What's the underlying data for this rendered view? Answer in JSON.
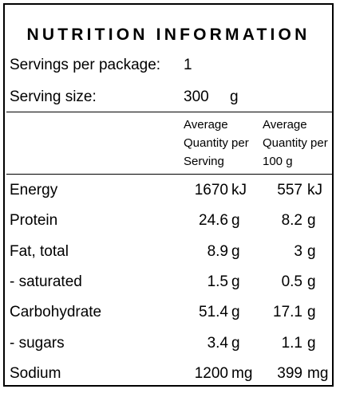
{
  "title": "NUTRITION INFORMATION",
  "servings_per_package": {
    "label": "Servings per package:",
    "value": "1"
  },
  "serving_size": {
    "label": "Serving size:",
    "value": "300",
    "unit": "g"
  },
  "column_headers": {
    "per_serving": [
      "Average",
      "Quantity per",
      "Serving"
    ],
    "per_100g": [
      "Average",
      "Quantity per",
      "100 g"
    ]
  },
  "rows": [
    {
      "name": "Energy",
      "serving_value": "1670",
      "serving_unit": "kJ",
      "per100_value": "557",
      "per100_unit": "kJ"
    },
    {
      "name": "Protein",
      "serving_value": "24.6",
      "serving_unit": "g",
      "per100_value": "8.2",
      "per100_unit": "g"
    },
    {
      "name": "Fat, total",
      "serving_value": "8.9",
      "serving_unit": "g",
      "per100_value": "3",
      "per100_unit": "g"
    },
    {
      "name": "- saturated",
      "serving_value": "1.5",
      "serving_unit": "g",
      "per100_value": "0.5",
      "per100_unit": "g"
    },
    {
      "name": "Carbohydrate",
      "serving_value": "51.4",
      "serving_unit": "g",
      "per100_value": "17.1",
      "per100_unit": "g"
    },
    {
      "name": "- sugars",
      "serving_value": "3.4",
      "serving_unit": "g",
      "per100_value": "1.1",
      "per100_unit": "g"
    },
    {
      "name": "Sodium",
      "serving_value": "1200",
      "serving_unit": "mg",
      "per100_value": "399",
      "per100_unit": "mg"
    }
  ]
}
